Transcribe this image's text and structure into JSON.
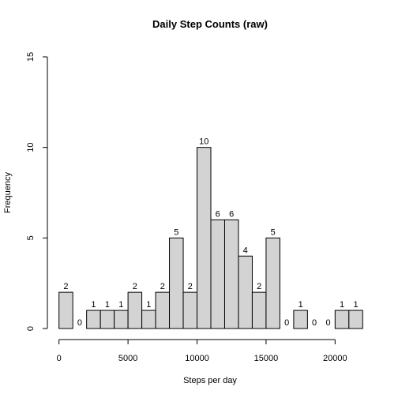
{
  "chart_data": {
    "type": "bar",
    "title": "Daily Step Counts (raw)",
    "xlabel": "Steps per day",
    "ylabel": "Frequency",
    "bin_width": 1000,
    "bin_start": 0,
    "values": [
      2,
      0,
      1,
      1,
      1,
      2,
      1,
      2,
      5,
      2,
      10,
      6,
      6,
      4,
      2,
      5,
      0,
      1,
      0,
      0,
      1,
      1
    ],
    "xlim": [
      0,
      22000
    ],
    "ylim": [
      0,
      15
    ],
    "xticks": [
      0,
      5000,
      10000,
      15000,
      20000
    ],
    "xtick_labels": [
      "0",
      "5000",
      "10000",
      "15000",
      "20000"
    ],
    "yticks": [
      0,
      5,
      10,
      15
    ],
    "ytick_labels": [
      "0",
      "5",
      "10",
      "15"
    ],
    "grid": false,
    "bar_color": "#d3d3d3"
  }
}
